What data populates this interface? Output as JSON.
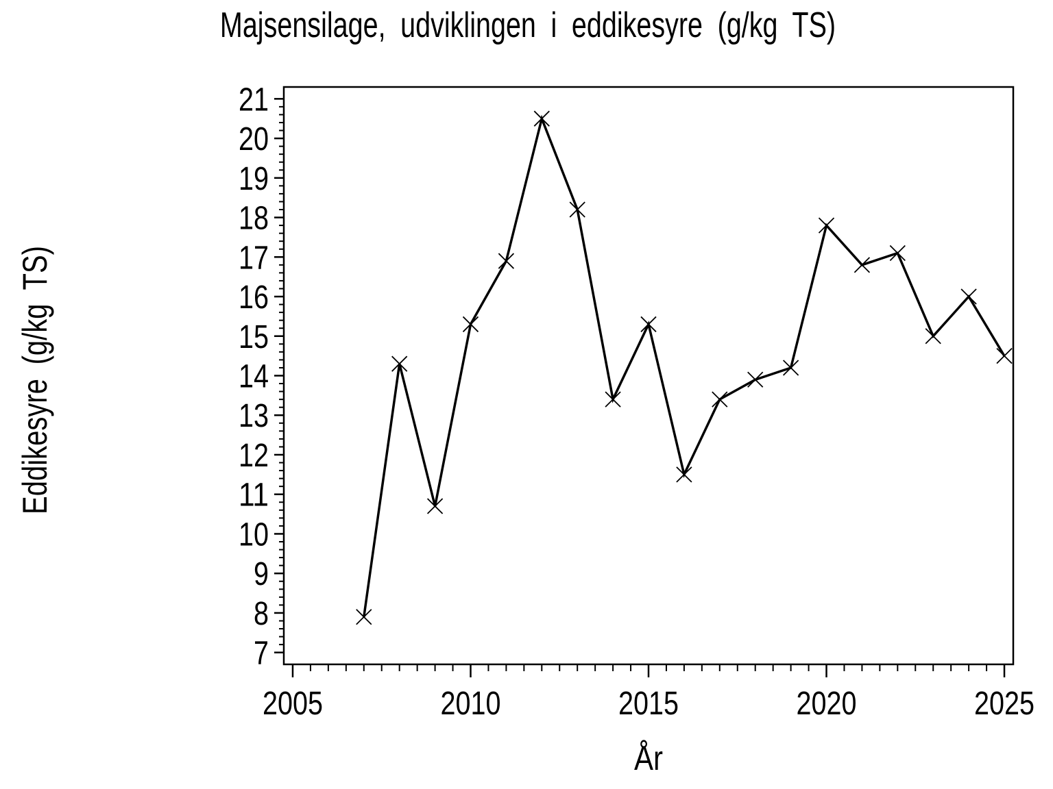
{
  "chart_data": {
    "type": "line",
    "title": "Majsensilage, udviklingen i eddikesyre (g/kg TS)",
    "xlabel": "År",
    "ylabel": "Eddikesyre (g/kg TS)",
    "x": [
      2007,
      2008,
      2009,
      2010,
      2011,
      2012,
      2013,
      2014,
      2015,
      2016,
      2017,
      2018,
      2019,
      2020,
      2021,
      2022,
      2023,
      2024,
      2025
    ],
    "y": [
      7.9,
      14.3,
      10.7,
      15.3,
      16.9,
      20.5,
      18.2,
      13.4,
      15.3,
      11.5,
      13.4,
      13.9,
      14.2,
      17.8,
      16.8,
      17.1,
      15.0,
      16.0,
      14.5
    ],
    "xlim": [
      2004.75,
      2025.25
    ],
    "ylim": [
      6.7,
      21.3
    ],
    "x_major_ticks": [
      2005,
      2010,
      2015,
      2020,
      2025
    ],
    "x_minor_step": 0.5,
    "y_major_tick_start": 7,
    "y_major_tick_end": 21,
    "y_major_step": 1,
    "y_minor_step": 0.2,
    "marker": "x",
    "line_color": "#000000",
    "axis_color": "#000000",
    "background_color": "#ffffff",
    "grid": false,
    "legend_position": "none"
  }
}
